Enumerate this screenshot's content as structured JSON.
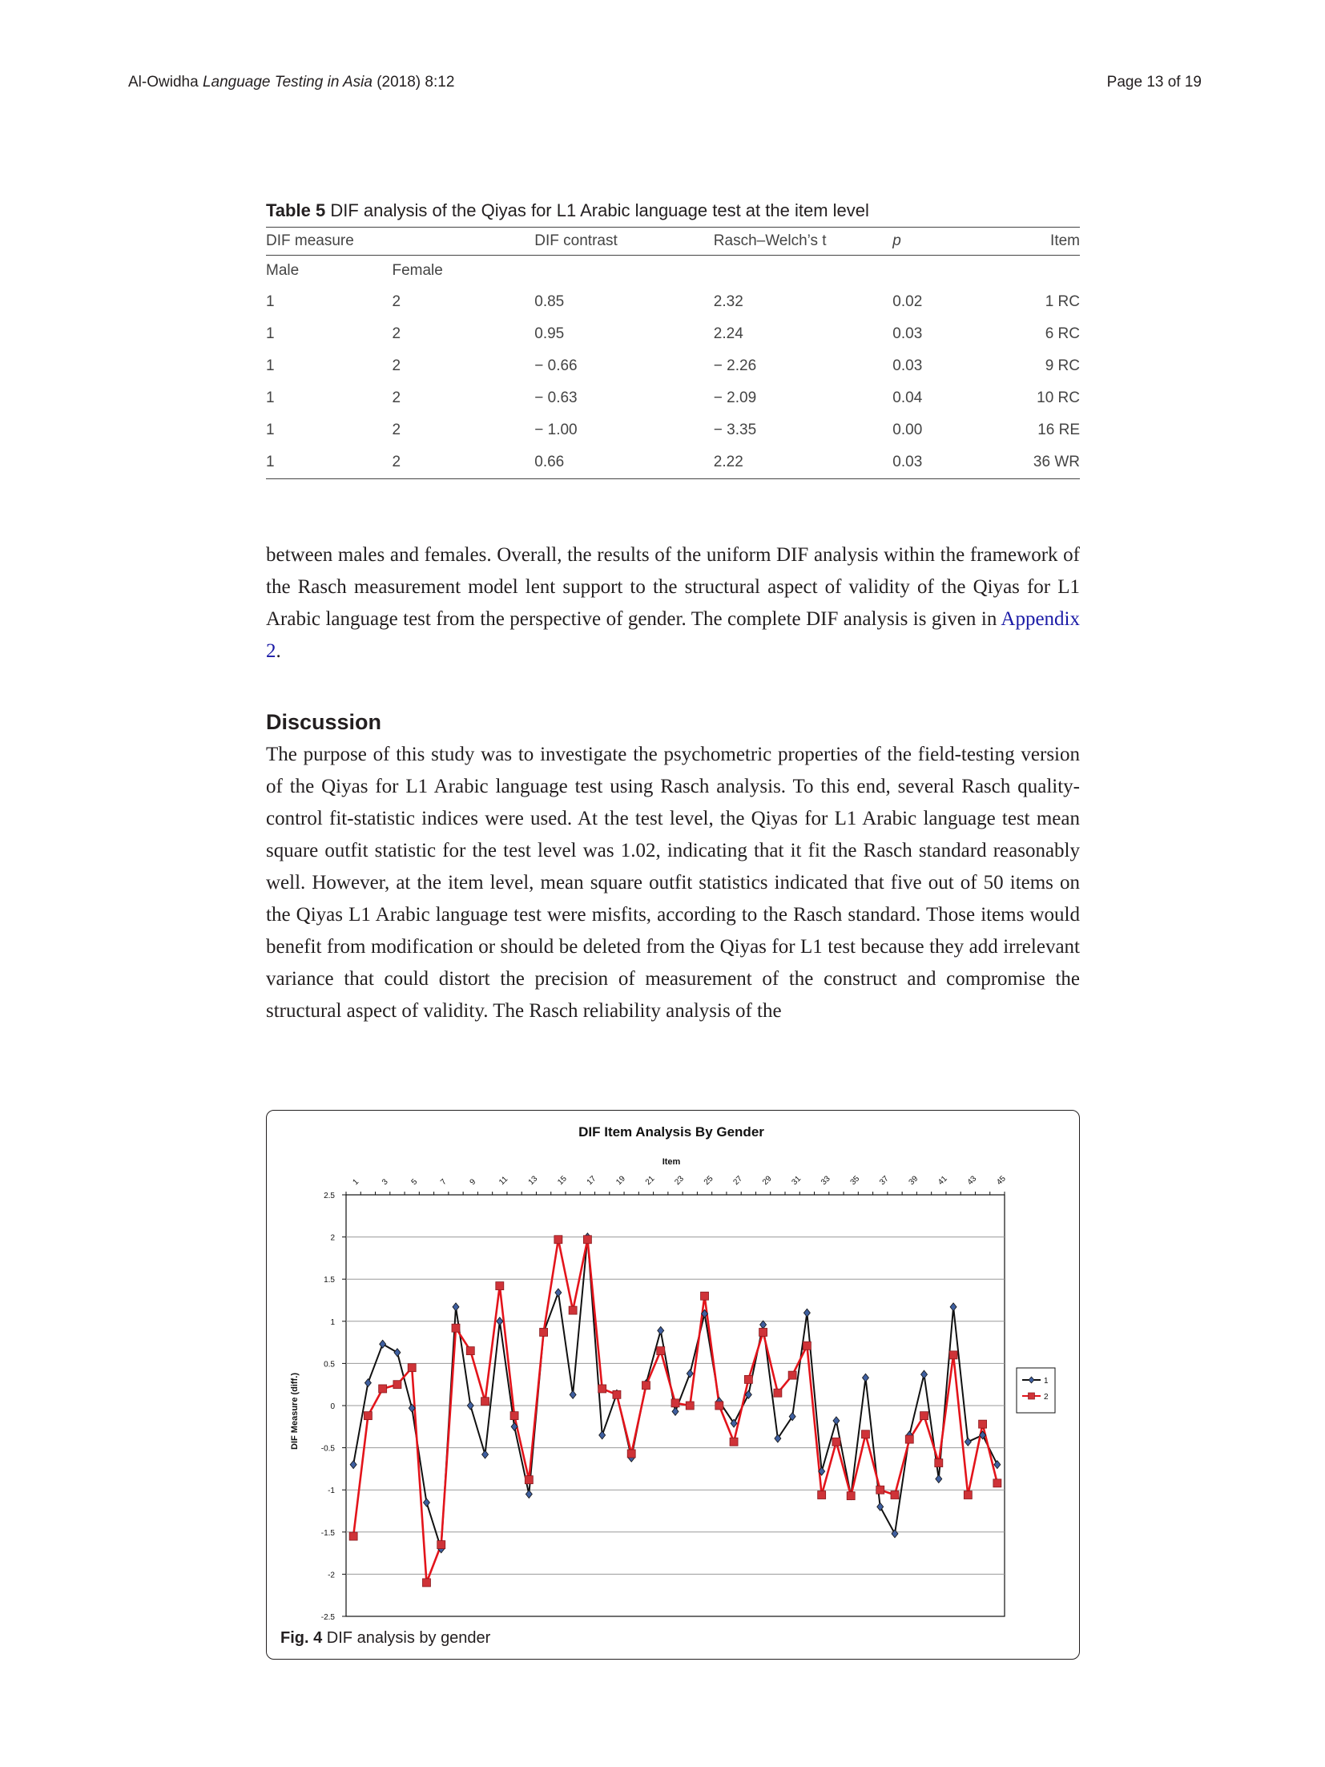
{
  "header": {
    "author": "Al-Owidha",
    "journal": "Language Testing in Asia",
    "citation": "(2018) 8:12",
    "page": "Page 13 of 19"
  },
  "table5": {
    "label": "Table 5",
    "caption": "DIF analysis of the Qiyas for L1 Arabic language test at the item level",
    "headers": [
      "DIF measure",
      "DIF contrast",
      "Rasch–Welch’s t",
      "p",
      "Item"
    ],
    "subheaders": [
      "Male",
      "Female"
    ],
    "rows": [
      [
        "1",
        "2",
        "0.85",
        "2.32",
        "0.02",
        "1 RC"
      ],
      [
        "1",
        "2",
        "0.95",
        "2.24",
        "0.03",
        "6 RC"
      ],
      [
        "1",
        "2",
        "− 0.66",
        "− 2.26",
        "0.03",
        "9 RC"
      ],
      [
        "1",
        "2",
        "− 0.63",
        "− 2.09",
        "0.04",
        "10 RC"
      ],
      [
        "1",
        "2",
        "− 1.00",
        "− 3.35",
        "0.00",
        "16 RE"
      ],
      [
        "1",
        "2",
        "0.66",
        "2.22",
        "0.03",
        "36 WR"
      ]
    ]
  },
  "paragraph1": {
    "text": "between males and females. Overall, the results of the uniform DIF analysis within the framework of the Rasch measurement model lent support to the structural aspect of validity of the Qiyas for L1 Arabic language test from the perspective of gender. The complete DIF analysis is given in ",
    "link": "Appendix 2",
    "end": "."
  },
  "discussion": {
    "heading": "Discussion",
    "text": "The purpose of this study was to investigate the psychometric properties of the field-testing version of the Qiyas for L1 Arabic language test using Rasch analysis. To this end, several Rasch quality-control fit-statistic indices were used. At the test level, the Qiyas for L1 Arabic language test mean square outfit statistic for the test level was 1.02, indicating that it fit the Rasch standard reasonably well. However, at the item level, mean square outfit statistics indicated that five out of 50 items on the Qiyas L1 Arabic language test were misfits, according to the Rasch standard. Those items would benefit from modification or should be deleted from the Qiyas for L1 test because they add irrelevant variance that could distort the precision of measurement of the construct and compromise the structural aspect of validity. The Rasch reliability analysis of the"
  },
  "figure": {
    "label": "Fig. 4",
    "caption": "DIF analysis by gender"
  },
  "chart_data": {
    "type": "line",
    "title": "DIF Item Analysis By Gender",
    "xlabel": "Item",
    "ylabel": "DIF Measure (diff.)",
    "x_axis_position": "top",
    "x_tick_labels": [
      "1",
      "3",
      "5",
      "7",
      "9",
      "11",
      "13",
      "15",
      "17",
      "19",
      "21",
      "23",
      "25",
      "27",
      "29",
      "31",
      "33",
      "35",
      "37",
      "39",
      "41",
      "43",
      "45"
    ],
    "y_ticks": [
      "2.5",
      "2",
      "1.5",
      "1",
      "0.5",
      "0",
      "-0.5",
      "-1",
      "-1.5",
      "-2",
      "-2.5"
    ],
    "ylim": [
      -2.5,
      2.5
    ],
    "grid": true,
    "legend": "right",
    "x": [
      1,
      2,
      3,
      4,
      5,
      6,
      7,
      8,
      9,
      10,
      11,
      12,
      13,
      14,
      15,
      16,
      17,
      18,
      19,
      20,
      21,
      22,
      23,
      24,
      25,
      26,
      27,
      28,
      29,
      30,
      31,
      32,
      33,
      34,
      35,
      36,
      37,
      38,
      39,
      40,
      41,
      42,
      43,
      44,
      45
    ],
    "series": [
      {
        "name": "1",
        "color": "#111111",
        "marker": "diamond",
        "marker_color": "#3f5f9f",
        "values": [
          -0.7,
          0.27,
          0.73,
          0.63,
          -0.03,
          -1.15,
          -1.7,
          1.17,
          0.0,
          -0.58,
          1.0,
          -0.25,
          -1.05,
          0.87,
          1.34,
          0.13,
          2.0,
          -0.35,
          0.14,
          -0.62,
          0.26,
          0.89,
          -0.07,
          0.38,
          1.09,
          0.05,
          -0.21,
          0.13,
          0.96,
          -0.39,
          -0.13,
          1.1,
          -0.78,
          -0.18,
          -1.07,
          0.33,
          -1.2,
          -1.52,
          -0.35,
          0.37,
          -0.87,
          1.17,
          -0.43,
          -0.35,
          -0.7
        ]
      },
      {
        "name": "2",
        "color": "#e3141b",
        "marker": "square",
        "marker_color": "#cf3338",
        "values": [
          -1.55,
          -0.12,
          0.2,
          0.25,
          0.45,
          -2.1,
          -1.65,
          0.92,
          0.65,
          0.05,
          1.42,
          -0.12,
          -0.88,
          0.87,
          1.97,
          1.13,
          1.97,
          0.2,
          0.13,
          -0.57,
          0.24,
          0.65,
          0.03,
          0.0,
          1.3,
          0.0,
          -0.43,
          0.31,
          0.87,
          0.15,
          0.36,
          0.71,
          -1.06,
          -0.43,
          -1.07,
          -0.34,
          -1.0,
          -1.06,
          -0.4,
          -0.12,
          -0.68,
          0.6,
          -1.06,
          -0.22,
          -0.92
        ]
      }
    ]
  }
}
